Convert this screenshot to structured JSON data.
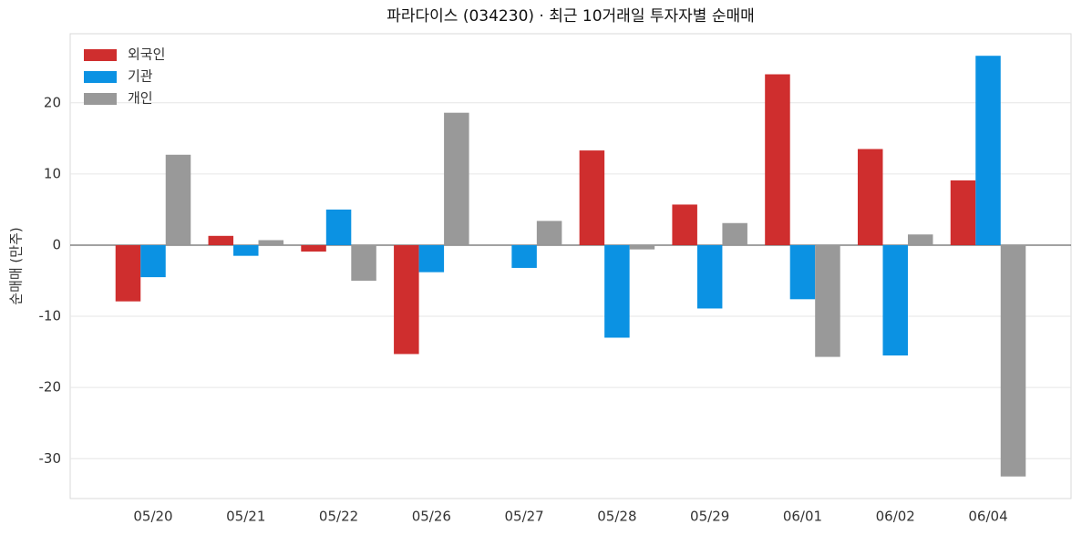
{
  "chart_data": {
    "type": "bar",
    "title": "파라다이스 (034230) · 최근 10거래일 투자자별 순매매",
    "y_label": "순매매 (만주)",
    "categories": [
      "05/20",
      "05/21",
      "05/22",
      "05/26",
      "05/27",
      "05/28",
      "05/29",
      "06/01",
      "06/02",
      "06/04"
    ],
    "series": [
      {
        "name": "외국인",
        "color": "#cf2e2e",
        "values": [
          -7.9,
          1.3,
          -0.9,
          -15.3,
          0,
          13.3,
          5.7,
          24.0,
          13.5,
          9.1
        ]
      },
      {
        "name": "기관",
        "color": "#0b92e3",
        "values": [
          -4.5,
          -1.5,
          5.0,
          -3.8,
          -3.2,
          -13.0,
          -8.9,
          -7.6,
          -15.5,
          26.6
        ]
      },
      {
        "name": "개인",
        "color": "#999999",
        "values": [
          12.7,
          0.7,
          -5.0,
          18.6,
          3.4,
          -0.6,
          3.1,
          -15.7,
          1.5,
          -32.5
        ]
      }
    ],
    "ylim": [
      -35.6,
      29.7
    ],
    "yticks": [
      -30,
      -20,
      -10,
      0,
      10,
      20
    ],
    "grid": true,
    "legend": "upper-left"
  }
}
